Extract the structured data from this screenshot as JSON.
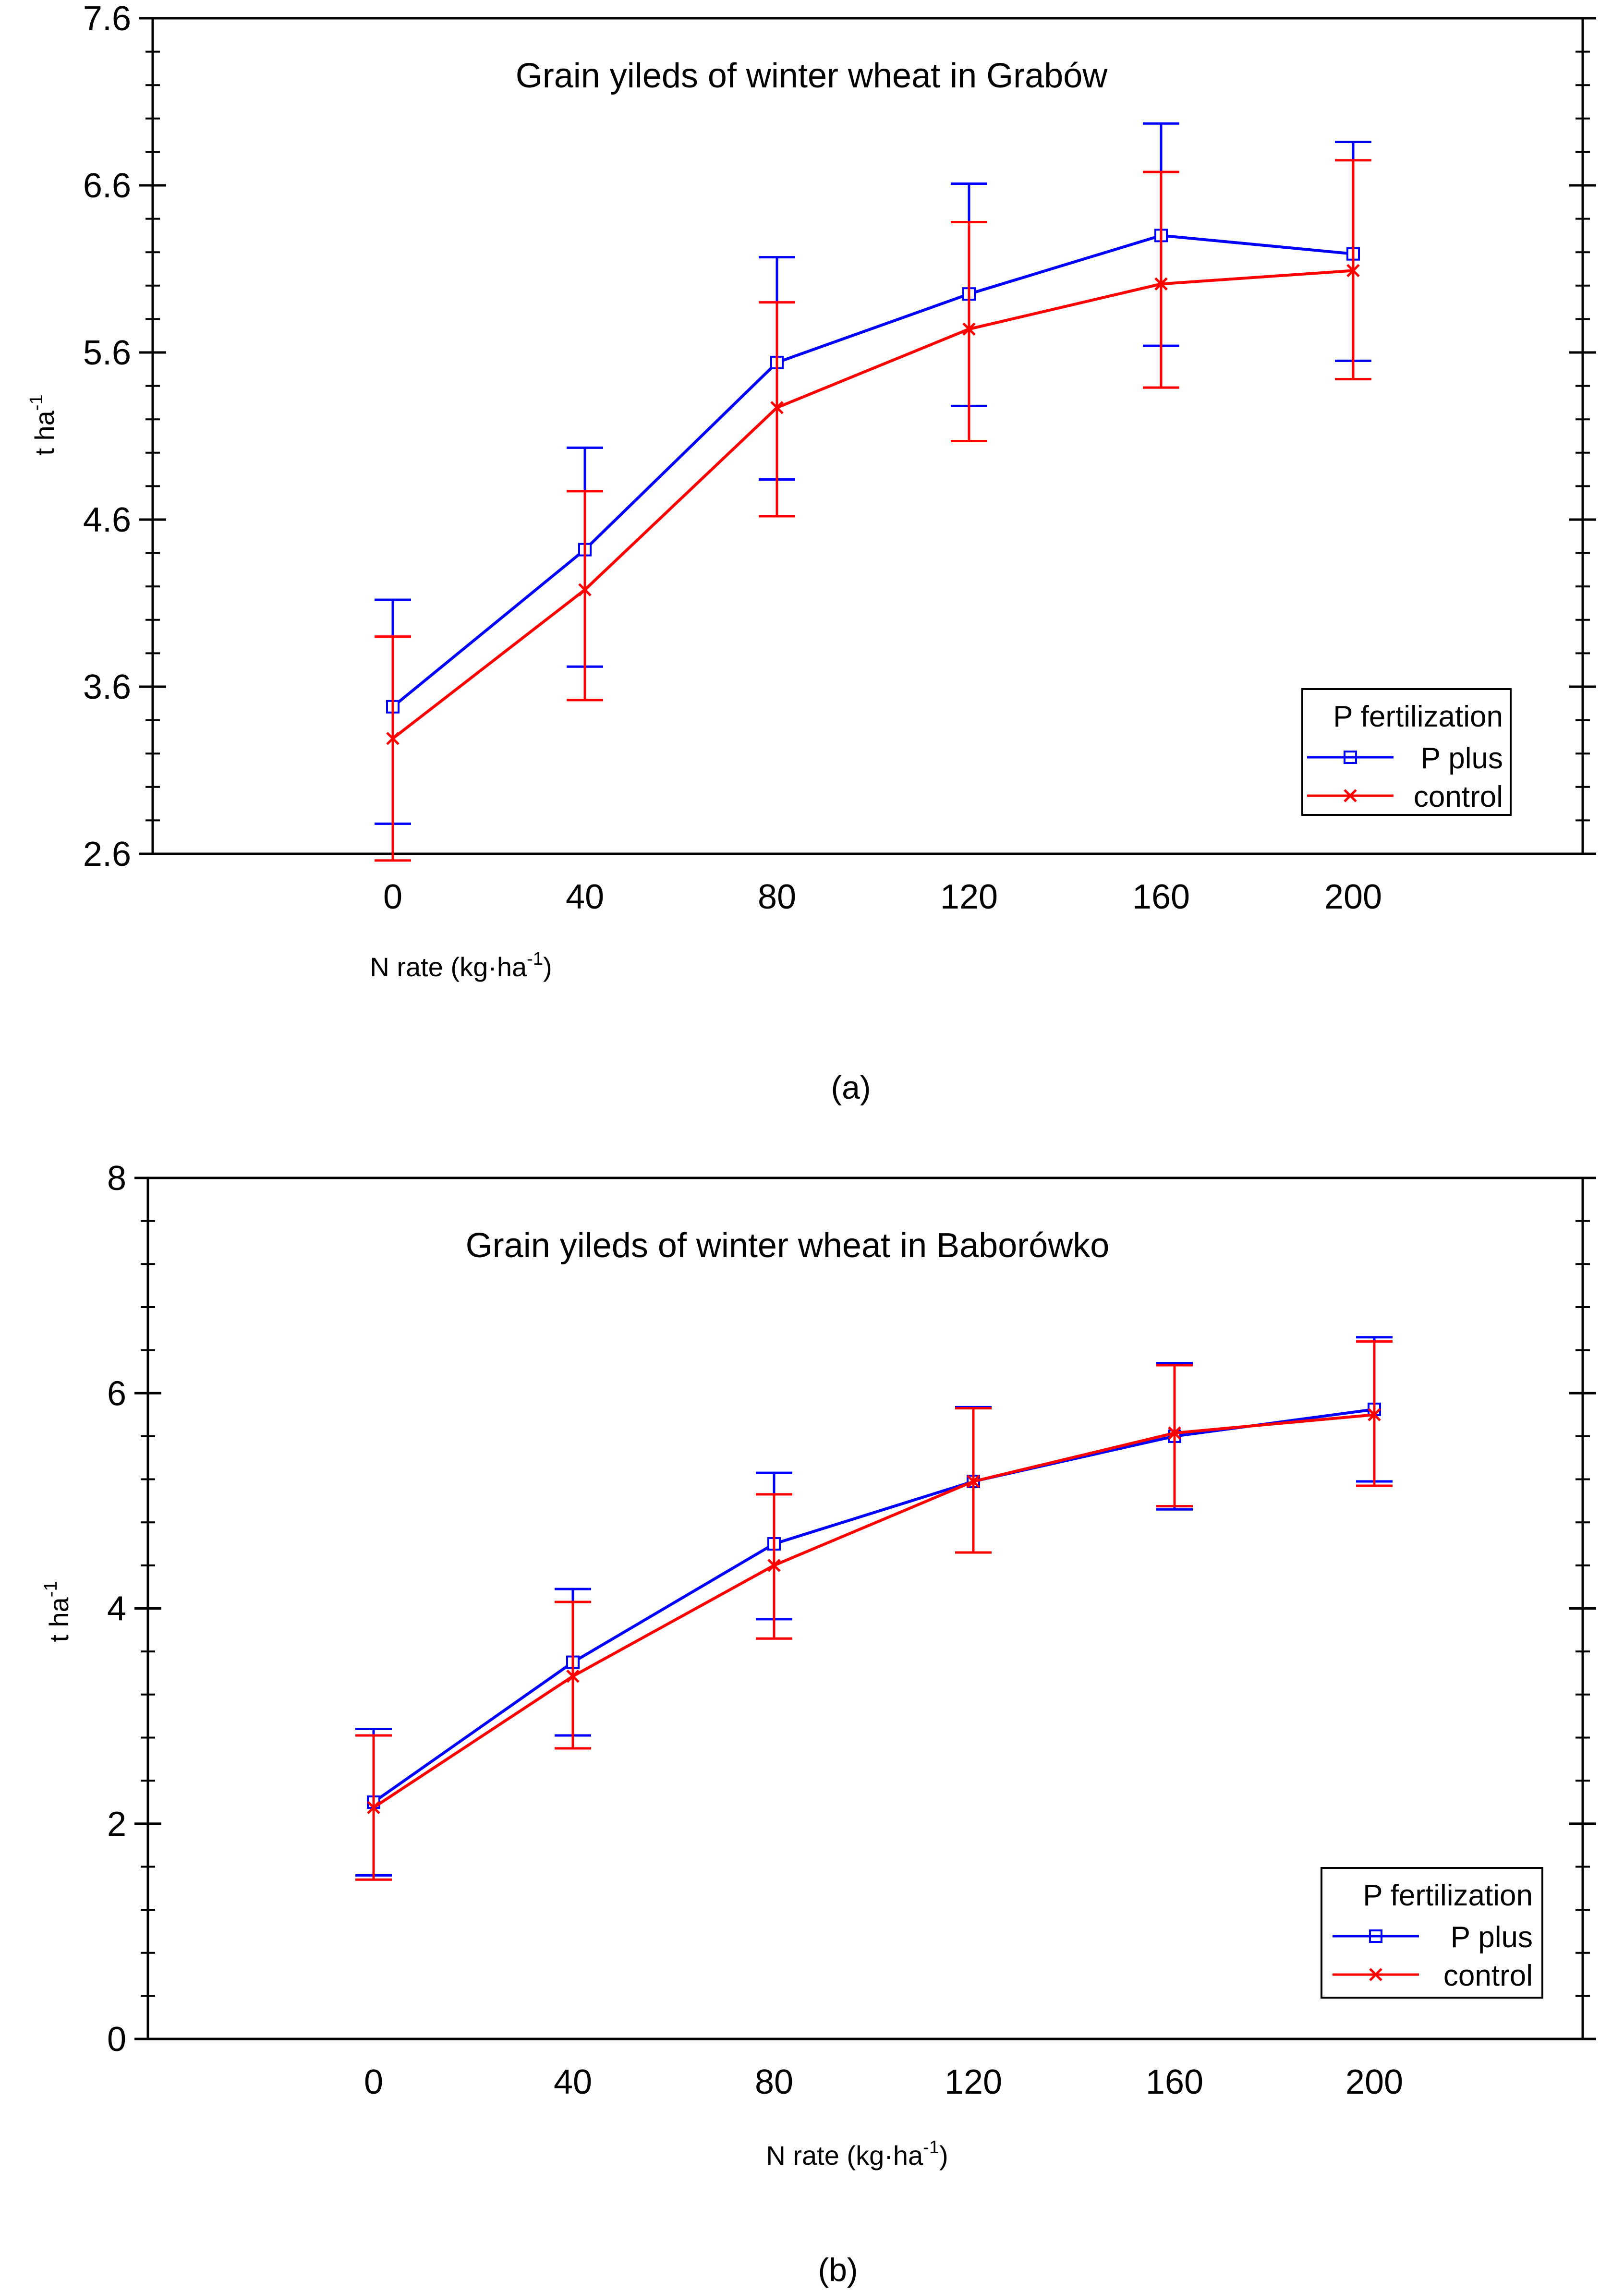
{
  "chart_data": [
    {
      "type": "line",
      "title": "Grain yileds of winter wheat in Grabów",
      "xlabel": "N rate (kg·ha-1)",
      "xlabel_main": "N rate (kg·ha",
      "xlabel_sup": "-1",
      "xlabel_end": ")",
      "ylabel": "t ha-1",
      "ylabel_main": "t ha",
      "ylabel_sup": "-1",
      "caption": "(a)",
      "x": [
        0,
        40,
        80,
        120,
        160,
        200
      ],
      "x_ticks": [
        "0",
        "40",
        "80",
        "120",
        "160",
        "200"
      ],
      "y_ticks": [
        "2.6",
        "3.6",
        "4.6",
        "5.6",
        "6.6",
        "7.6"
      ],
      "ylim": [
        2.6,
        7.6
      ],
      "legend_title": "P fertilization",
      "series": [
        {
          "name": "P plus",
          "color": "#0000ff",
          "marker": "square",
          "values": [
            3.48,
            4.42,
            5.54,
            5.95,
            6.3,
            6.19
          ],
          "lower": [
            2.78,
            3.72,
            4.84,
            5.28,
            5.64,
            5.55
          ],
          "upper": [
            4.12,
            5.03,
            6.17,
            6.61,
            6.97,
            6.86
          ]
        },
        {
          "name": "control",
          "color": "#ff0000",
          "marker": "cross",
          "values": [
            3.29,
            4.18,
            5.27,
            5.74,
            6.01,
            6.09
          ],
          "lower": [
            2.56,
            3.52,
            4.62,
            5.07,
            5.39,
            5.44
          ],
          "upper": [
            3.9,
            4.77,
            5.9,
            6.38,
            6.68,
            6.75
          ]
        }
      ]
    },
    {
      "type": "line",
      "title": "Grain yileds of winter wheat in Baborówko",
      "xlabel": "N rate (kg·ha-1)",
      "xlabel_main": "N rate (kg·ha",
      "xlabel_sup": "-1",
      "xlabel_end": ")",
      "ylabel": "t ha-1",
      "ylabel_main": "t ha",
      "ylabel_sup": "-1",
      "caption": "(b)",
      "x": [
        0,
        40,
        80,
        120,
        160,
        200
      ],
      "x_ticks": [
        "0",
        "40",
        "80",
        "120",
        "160",
        "200"
      ],
      "y_ticks": [
        "0",
        "2",
        "4",
        "6",
        "8"
      ],
      "ylim": [
        0,
        8
      ],
      "legend_title": "P fertilization",
      "series": [
        {
          "name": "P plus",
          "color": "#0000ff",
          "marker": "square",
          "values": [
            2.2,
            3.5,
            4.6,
            5.18,
            5.6,
            5.85
          ],
          "lower": [
            1.52,
            2.82,
            3.9,
            4.52,
            4.92,
            5.18
          ],
          "upper": [
            2.88,
            4.18,
            5.26,
            5.87,
            6.28,
            6.52
          ]
        },
        {
          "name": "control",
          "color": "#ff0000",
          "marker": "cross",
          "values": [
            2.15,
            3.37,
            4.4,
            5.18,
            5.63,
            5.8
          ],
          "lower": [
            1.48,
            2.7,
            3.72,
            4.52,
            4.95,
            5.14
          ],
          "upper": [
            2.82,
            4.06,
            5.06,
            5.86,
            6.26,
            6.48
          ]
        }
      ]
    }
  ]
}
